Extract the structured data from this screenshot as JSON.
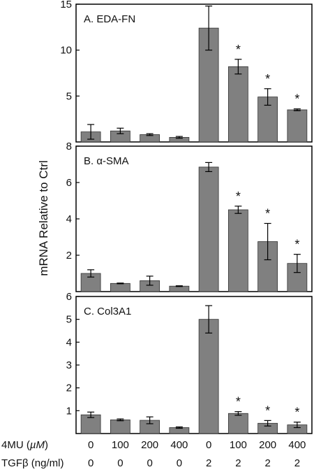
{
  "ylabel": "mRNA Relative to Ctrl",
  "row_labels": {
    "mu4": "4MU (µM)",
    "mu4_prefix": "4MU (",
    "mu4_unit": "µM",
    "mu4_suffix": ")",
    "tgf": "TGFβ (ng/ml)"
  },
  "categories": {
    "mu4": [
      "0",
      "100",
      "200",
      "400",
      "0",
      "100",
      "200",
      "400"
    ],
    "tgf": [
      "0",
      "0",
      "0",
      "0",
      "2",
      "2",
      "2",
      "2"
    ]
  },
  "colors": {
    "bar": "#808080",
    "axis": "#000000",
    "text": "#111111"
  },
  "chart_data": [
    {
      "type": "bar",
      "title": "A.  EDA-FN",
      "y_ticks": [
        "5",
        "10",
        "15"
      ],
      "ylim": [
        0,
        15
      ],
      "values": [
        1.1,
        1.2,
        0.8,
        0.5,
        12.4,
        8.2,
        4.9,
        3.5
      ],
      "errors": [
        0.8,
        0.3,
        0.1,
        0.1,
        2.4,
        0.8,
        0.9,
        0.1
      ],
      "significant": [
        false,
        false,
        false,
        false,
        false,
        true,
        true,
        true
      ],
      "star_symbol": "*"
    },
    {
      "type": "bar",
      "title": "B.  α-SMA",
      "y_ticks": [
        "2",
        "4",
        "6",
        "8"
      ],
      "ylim": [
        0,
        8
      ],
      "values": [
        1.0,
        0.45,
        0.6,
        0.3,
        6.85,
        4.5,
        2.75,
        1.55
      ],
      "errors": [
        0.2,
        0.02,
        0.25,
        0.02,
        0.25,
        0.2,
        1.0,
        0.5
      ],
      "significant": [
        false,
        false,
        false,
        false,
        false,
        true,
        true,
        true
      ],
      "star_symbol": "*"
    },
    {
      "type": "bar",
      "title": "C. Col3A1",
      "y_ticks": [
        "1",
        "2",
        "3",
        "4",
        "5",
        "6"
      ],
      "ylim": [
        0,
        6
      ],
      "values": [
        0.82,
        0.6,
        0.58,
        0.26,
        5.0,
        0.88,
        0.45,
        0.38
      ],
      "errors": [
        0.12,
        0.04,
        0.15,
        0.03,
        0.6,
        0.08,
        0.12,
        0.12
      ],
      "significant": [
        false,
        false,
        false,
        false,
        false,
        true,
        true,
        true
      ],
      "star_symbol": "*"
    }
  ]
}
